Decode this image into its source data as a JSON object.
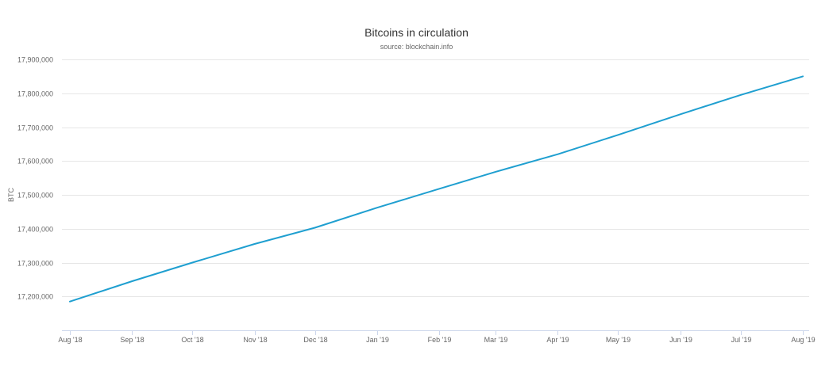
{
  "chart_data": {
    "type": "line",
    "title": "Bitcoins in circulation",
    "subtitle": "source: blockchain.info",
    "ylabel": "BTC",
    "xlabel": "",
    "ylim": [
      17100000,
      17900000
    ],
    "yticks": [
      17200000,
      17300000,
      17400000,
      17500000,
      17600000,
      17700000,
      17800000,
      17900000
    ],
    "ytick_labels": [
      "17,200,000",
      "17,300,000",
      "17,400,000",
      "17,500,000",
      "17,600,000",
      "17,700,000",
      "17,800,000",
      "17,900,000"
    ],
    "xlim": [
      "2018-08-01",
      "2019-08-01"
    ],
    "xticks": [
      "2018-08-01",
      "2018-09-01",
      "2018-10-01",
      "2018-11-01",
      "2018-12-01",
      "2019-01-01",
      "2019-02-01",
      "2019-03-01",
      "2019-04-01",
      "2019-05-01",
      "2019-06-01",
      "2019-07-01",
      "2019-08-01"
    ],
    "xtick_labels": [
      "Aug '18",
      "Sep '18",
      "Oct '18",
      "Nov '18",
      "Dec '18",
      "Jan '19",
      "Feb '19",
      "Mar '19",
      "Apr '19",
      "May '19",
      "Jun '19",
      "Jul '19",
      "Aug '19"
    ],
    "grid": true,
    "legend": "none",
    "series": [
      {
        "color": "#1f9fd0",
        "x": [
          "2018-08-01",
          "2018-09-01",
          "2018-10-01",
          "2018-11-01",
          "2018-12-01",
          "2019-01-01",
          "2019-02-01",
          "2019-03-01",
          "2019-04-01",
          "2019-05-01",
          "2019-06-01",
          "2019-07-01",
          "2019-08-01"
        ],
        "y": [
          17185000,
          17245000,
          17300000,
          17355000,
          17403000,
          17462000,
          17518000,
          17568000,
          17620000,
          17677000,
          17738000,
          17795000,
          17850000
        ]
      }
    ]
  }
}
